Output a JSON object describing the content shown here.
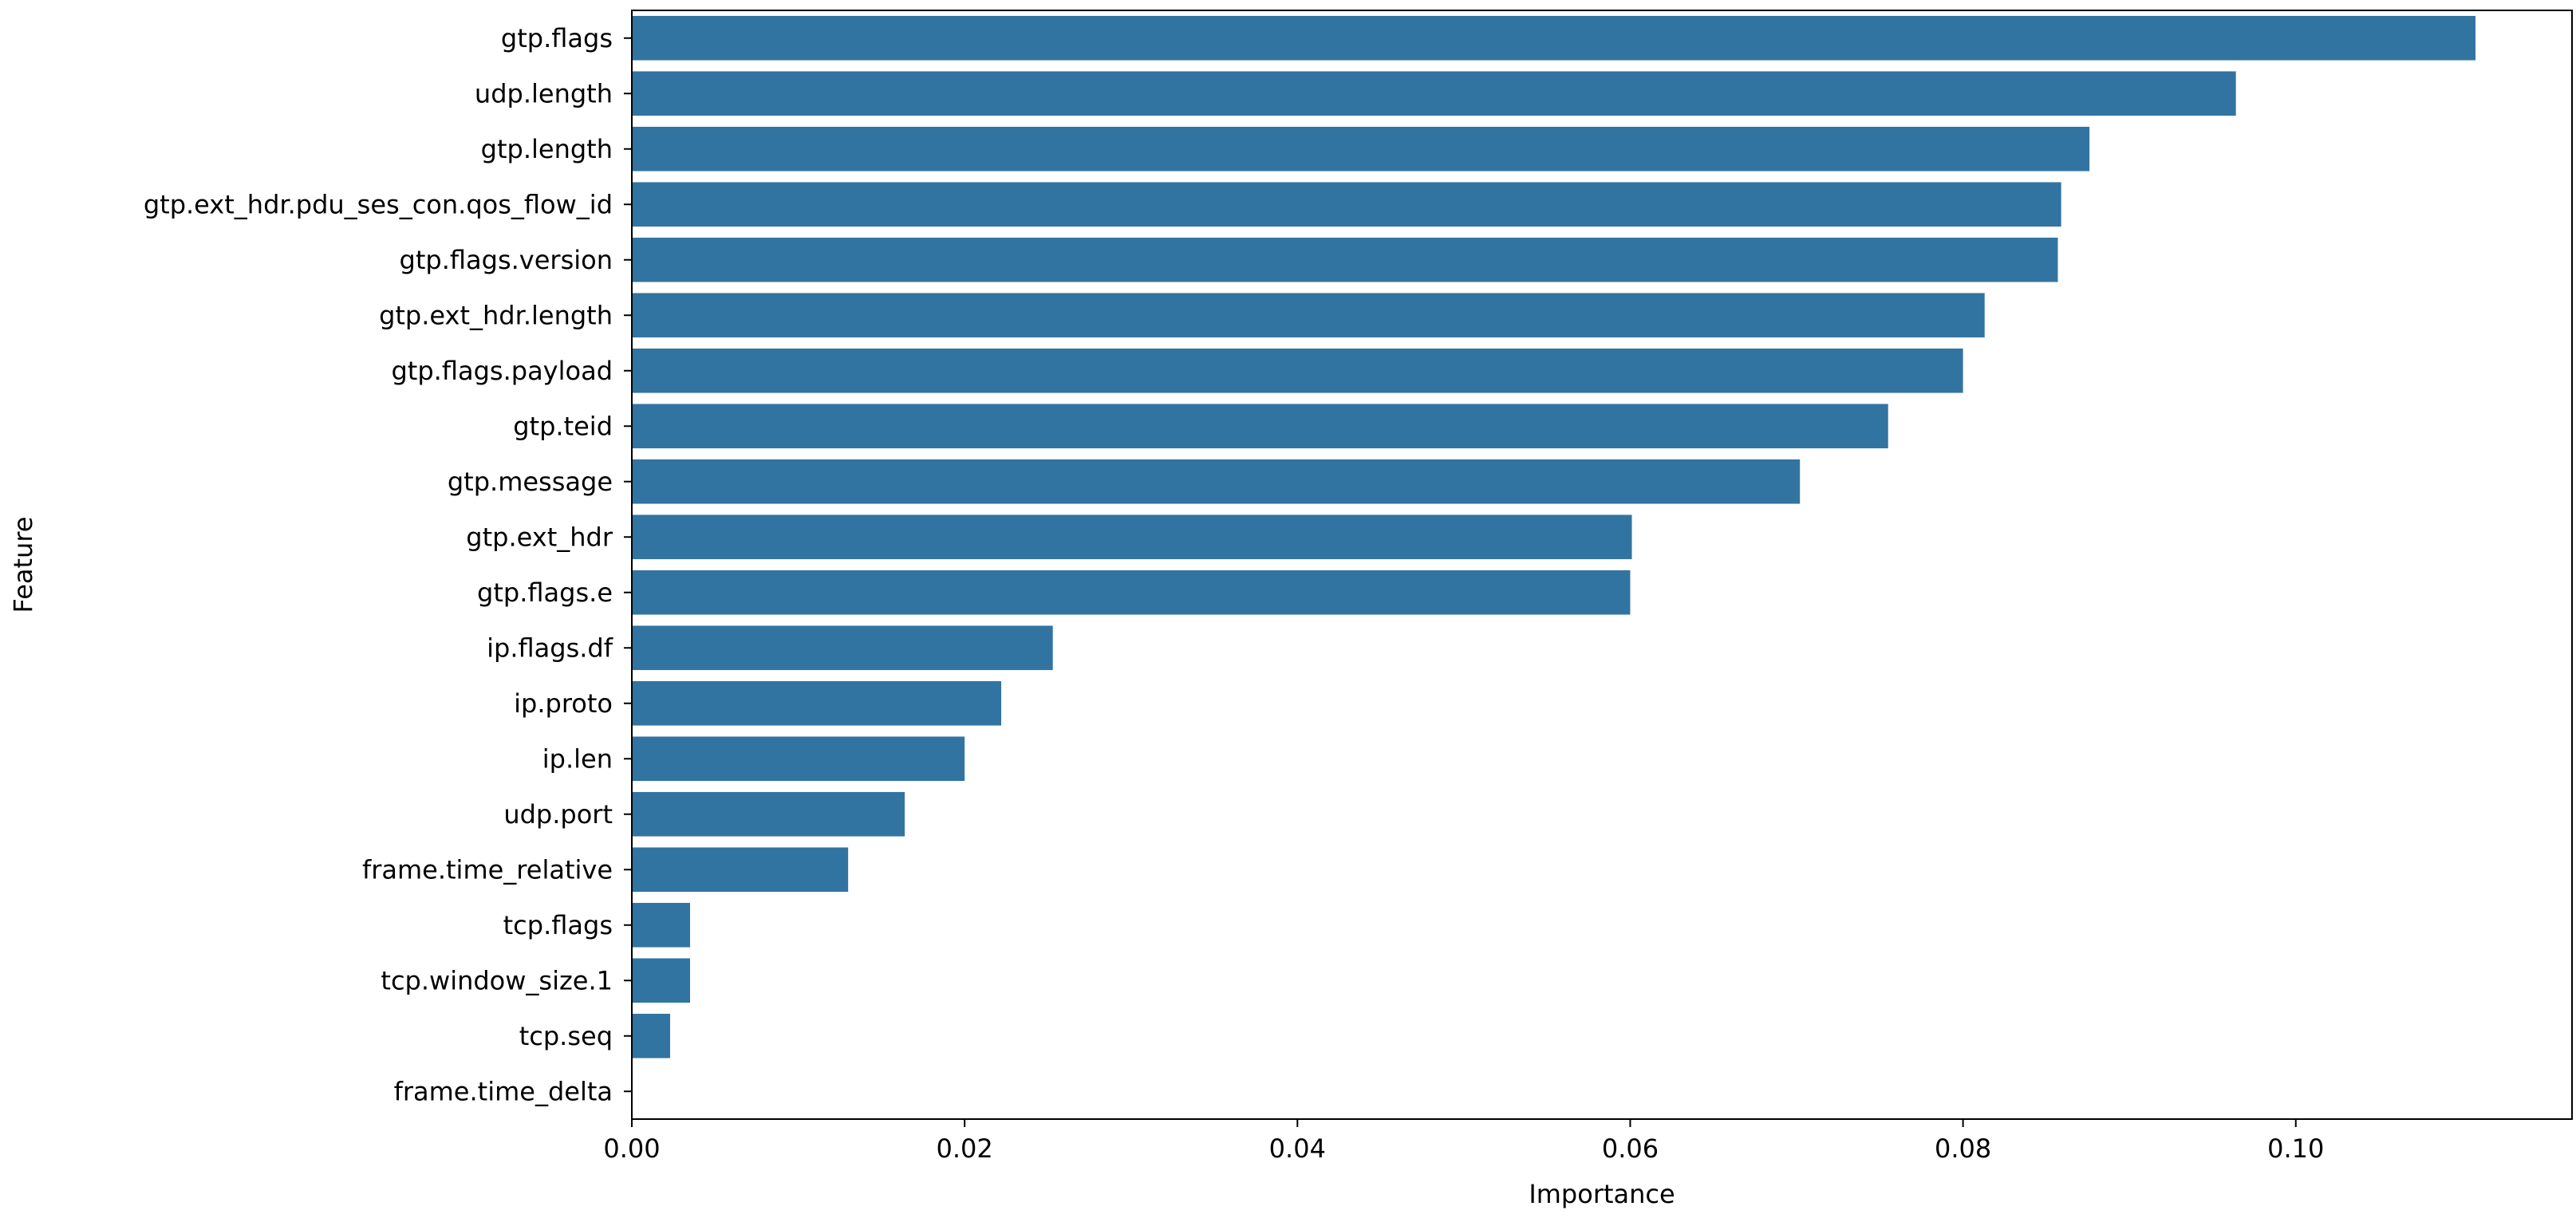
{
  "chart_data": {
    "type": "bar",
    "orientation": "horizontal",
    "title": "",
    "xlabel": "Importance",
    "ylabel": "Feature",
    "xlim": [
      0,
      0.1166
    ],
    "xticks": [
      0.0,
      0.02,
      0.04,
      0.06,
      0.08,
      0.1
    ],
    "xtick_labels": [
      "0.00",
      "0.02",
      "0.04",
      "0.06",
      "0.08",
      "0.10"
    ],
    "grid": false,
    "legend": "none",
    "bar_color": "#3274a1",
    "categories": [
      "gtp.flags",
      "udp.length",
      "gtp.length",
      "gtp.ext_hdr.pdu_ses_con.qos_flow_id",
      "gtp.flags.version",
      "gtp.ext_hdr.length",
      "gtp.flags.payload",
      "gtp.teid",
      "gtp.message",
      "gtp.ext_hdr",
      "gtp.flags.e",
      "ip.flags.df",
      "ip.proto",
      "ip.len",
      "udp.port",
      "frame.time_relative",
      "tcp.flags",
      "tcp.window_size.1",
      "tcp.seq",
      "frame.time_delta"
    ],
    "values": [
      0.1108,
      0.0964,
      0.0876,
      0.0859,
      0.0857,
      0.0813,
      0.08,
      0.0755,
      0.0702,
      0.0601,
      0.06,
      0.0253,
      0.0222,
      0.02,
      0.0164,
      0.013,
      0.0035,
      0.0035,
      0.0023,
      0.0
    ]
  }
}
